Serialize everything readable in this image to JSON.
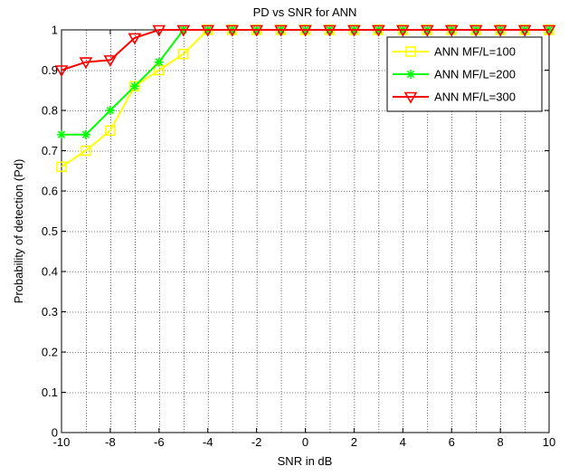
{
  "chart_data": {
    "type": "line",
    "title": "PD vs SNR for ANN",
    "xlabel": "SNR in dB",
    "ylabel": "Probability of detection (Pd)",
    "xlim": [
      -10,
      10
    ],
    "ylim": [
      0,
      1
    ],
    "xticks": [
      -10,
      -8,
      -6,
      -4,
      -2,
      0,
      2,
      4,
      6,
      8,
      10
    ],
    "yticks": [
      0,
      0.1,
      0.2,
      0.3,
      0.4,
      0.5,
      0.6,
      0.7,
      0.8,
      0.9,
      1
    ],
    "xtick_labels": [
      "-10",
      "-8",
      "-6",
      "-4",
      "-2",
      "0",
      "2",
      "4",
      "6",
      "8",
      "10"
    ],
    "ytick_labels": [
      "0",
      "0.1",
      "0.2",
      "0.3",
      "0.4",
      "0.5",
      "0.6",
      "0.7",
      "0.8",
      "0.9",
      "1"
    ],
    "grid": true,
    "legend_position": "top-right",
    "x": [
      -10,
      -9,
      -8,
      -7,
      -6,
      -5,
      -4,
      -3,
      -2,
      -1,
      0,
      1,
      2,
      3,
      4,
      5,
      6,
      7,
      8,
      9,
      10
    ],
    "series": [
      {
        "name": "ANN MF/L=100",
        "color": "#ffff00",
        "marker": "square",
        "values": [
          0.66,
          0.7,
          0.75,
          0.86,
          0.9,
          0.94,
          1,
          1,
          1,
          1,
          1,
          1,
          1,
          1,
          1,
          1,
          1,
          1,
          1,
          1,
          1
        ]
      },
      {
        "name": "ANN MF/L=200",
        "color": "#00ff00",
        "marker": "star",
        "values": [
          0.74,
          0.74,
          0.8,
          0.86,
          0.92,
          1,
          1,
          1,
          1,
          1,
          1,
          1,
          1,
          1,
          1,
          1,
          1,
          1,
          1,
          1,
          1
        ]
      },
      {
        "name": "ANN MF/L=300",
        "color": "#ff0000",
        "marker": "triangle-down",
        "values": [
          0.9,
          0.92,
          0.925,
          0.98,
          1,
          1,
          1,
          1,
          1,
          1,
          1,
          1,
          1,
          1,
          1,
          1,
          1,
          1,
          1,
          1,
          1
        ]
      }
    ]
  }
}
